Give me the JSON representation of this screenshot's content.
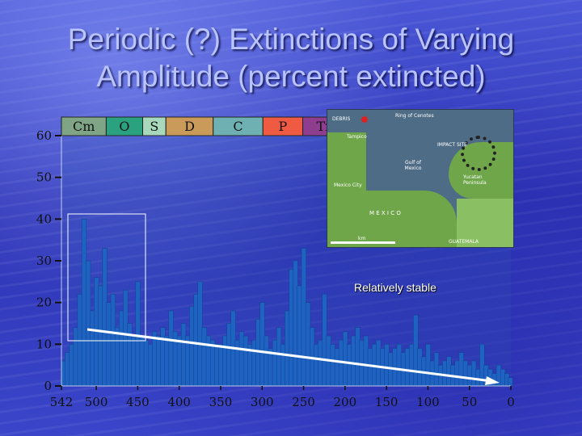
{
  "slide": {
    "title_line1": "Periodic (?) Extinctions of Varying",
    "title_line2": "Amplitude (percent extincted)",
    "annotation": "Relatively stable"
  },
  "inset_map": {
    "labels": {
      "debris": "DEBRIS",
      "ring": "Ring of Cenotes",
      "tampico": "Tampico",
      "impact_site": "IMPACT SITE",
      "gulf": "Gulf of Mexico",
      "yucatan": "Yucatan Peninsula",
      "mexico_city": "Mexico City",
      "mexico": "M E X I C O",
      "guatemala": "GUATEMALA",
      "scale": "km"
    }
  },
  "chart_data": {
    "type": "bar",
    "x_reversed": true,
    "xlim": [
      542,
      0
    ],
    "ylim": [
      0,
      60
    ],
    "x_ticks": [
      542,
      500,
      450,
      400,
      350,
      300,
      250,
      200,
      150,
      100,
      50,
      0
    ],
    "y_ticks": [
      0,
      10,
      20,
      30,
      40,
      50,
      60
    ],
    "periods": [
      {
        "label": "Cm",
        "start": 542,
        "end": 488,
        "color": "#7fa486"
      },
      {
        "label": "O",
        "start": 488,
        "end": 444,
        "color": "#2ba27f"
      },
      {
        "label": "S",
        "start": 444,
        "end": 416,
        "color": "#a8d9bd"
      },
      {
        "label": "D",
        "start": 416,
        "end": 359,
        "color": "#c99a5a"
      },
      {
        "label": "C",
        "start": 359,
        "end": 299,
        "color": "#6fb0b2"
      },
      {
        "label": "P",
        "start": 299,
        "end": 251,
        "color": "#ef5a43"
      },
      {
        "label": "Tr",
        "start": 251,
        "end": 200,
        "color": "#8f3d8f"
      }
    ],
    "x": [
      540,
      535,
      530,
      525,
      520,
      515,
      510,
      505,
      500,
      495,
      490,
      485,
      480,
      475,
      470,
      465,
      460,
      455,
      450,
      445,
      440,
      435,
      430,
      425,
      420,
      415,
      410,
      405,
      400,
      395,
      390,
      385,
      380,
      375,
      370,
      365,
      360,
      355,
      350,
      345,
      340,
      335,
      330,
      325,
      320,
      315,
      310,
      305,
      300,
      295,
      290,
      285,
      280,
      275,
      270,
      265,
      260,
      255,
      250,
      245,
      240,
      235,
      230,
      225,
      220,
      215,
      210,
      205,
      200,
      195,
      190,
      185,
      180,
      175,
      170,
      165,
      160,
      155,
      150,
      145,
      140,
      135,
      130,
      125,
      120,
      115,
      110,
      105,
      100,
      95,
      90,
      85,
      80,
      75,
      70,
      65,
      60,
      55,
      50,
      45,
      40,
      35,
      30,
      25,
      20,
      15,
      10,
      5,
      1
    ],
    "values": [
      6,
      8,
      10,
      14,
      22,
      40,
      30,
      18,
      26,
      24,
      33,
      20,
      22,
      14,
      18,
      23,
      15,
      12,
      25,
      12,
      11,
      10,
      13,
      12,
      14,
      12,
      18,
      13,
      12,
      15,
      12,
      19,
      22,
      25,
      14,
      12,
      11,
      10,
      10,
      12,
      15,
      18,
      11,
      13,
      12,
      10,
      11,
      16,
      20,
      12,
      9,
      11,
      14,
      10,
      18,
      28,
      30,
      24,
      33,
      20,
      14,
      10,
      11,
      22,
      12,
      10,
      9,
      11,
      13,
      10,
      12,
      14,
      11,
      12,
      9,
      10,
      11,
      9,
      10,
      8,
      9,
      10,
      8,
      9,
      10,
      17,
      9,
      7,
      10,
      6,
      8,
      5,
      6,
      7,
      5,
      6,
      8,
      6,
      5,
      6,
      4,
      10,
      5,
      4,
      3,
      5,
      4,
      3,
      2
    ],
    "annotation": "Relatively stable"
  }
}
